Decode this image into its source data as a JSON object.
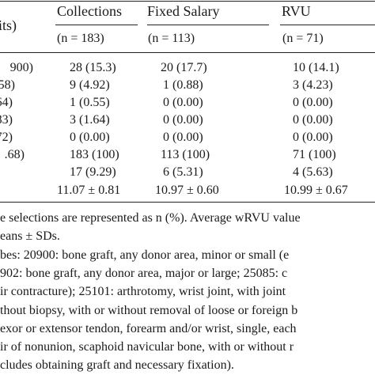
{
  "table": {
    "stub_header": "its)",
    "columns": [
      {
        "name": "Collections",
        "n": "(n = 183)"
      },
      {
        "name": "Fixed Salary",
        "n": "(n = 113)"
      },
      {
        "name": "RVU",
        "n": "(n = 71)"
      }
    ],
    "rows": [
      {
        "stub": "900)",
        "values": [
          "28 (15.3)",
          "20 (17.7)",
          "10 (14.1)"
        ]
      },
      {
        "stub": "58)",
        "values": [
          "9 (4.92)",
          "1 (0.88)",
          "3 (4.23)"
        ]
      },
      {
        "stub": "64)",
        "values": [
          "1 (0.55)",
          "0 (0.00)",
          "0 (0.00)"
        ]
      },
      {
        "stub": "83)",
        "values": [
          "3 (1.64)",
          "0 (0.00)",
          "0 (0.00)"
        ]
      },
      {
        "stub": "72)",
        "values": [
          "0 (0.00)",
          "0 (0.00)",
          "0 (0.00)"
        ]
      },
      {
        "stub": ".68)",
        "values": [
          "183 (100)",
          "113 (100)",
          "71 (100)"
        ]
      },
      {
        "stub": "",
        "values": [
          "17 (9.29)",
          "6 (5.31)",
          "4 (5.63)"
        ]
      },
      {
        "stub": "",
        "values": [
          "11.07 ± 0.81",
          "10.97 ± 0.60",
          "10.99 ± 0.67"
        ]
      }
    ]
  },
  "footnotes": [
    "e selections are represented as n (%). Average wRVU value",
    "eans ± SDs.",
    "bes: 20900: bone graft, any donor area, minor or small (e",
    "902: bone graft, any donor area, major or large; 25085: c",
    "ir contracture); 25101: arthrotomy, wrist joint, with joint",
    "thout biopsy, with or without removal of loose or foreign b",
    "exor or extensor tendon, forearm and/or wrist, single, each",
    "ir of nonunion, scaphoid navicular bone, with or without r",
    "cludes obtaining graft and necessary fixation)."
  ]
}
